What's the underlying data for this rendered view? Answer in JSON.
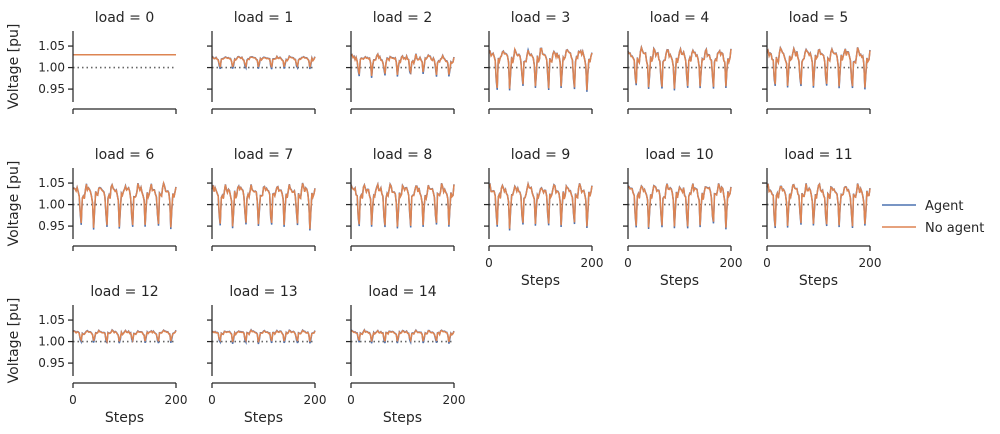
{
  "chart_data": {
    "type": "line",
    "facet_variable": "load",
    "facet_values": [
      0,
      1,
      2,
      3,
      4,
      5,
      6,
      7,
      8,
      9,
      10,
      11,
      12,
      13,
      14
    ],
    "facet_title_template": "load = {v}",
    "columns": 6,
    "xlabel": "Steps",
    "ylabel": "Voltage [pu]",
    "x_range": [
      0,
      200
    ],
    "ylim": [
      0.92,
      1.085
    ],
    "x_ticks": [
      0,
      200
    ],
    "y_ticks": [
      0.95,
      1.0,
      1.05
    ],
    "y_tick_labels": [
      "0.95",
      "1.00",
      "1.05"
    ],
    "reference_line": {
      "y": 1.0,
      "style": "dotted",
      "color": "#666666"
    },
    "legend": {
      "placement": "right-center",
      "entries": [
        "Agent",
        "No agent"
      ]
    },
    "series": [
      {
        "name": "Agent",
        "color": "#4c72b0"
      },
      {
        "name": "No agent",
        "color": "#dd8452"
      }
    ],
    "profiles": {
      "0": {
        "base": 1.03,
        "amp": 0.0,
        "period": 25,
        "jitter": 0
      },
      "1": {
        "base": 1.012,
        "amp": 0.018,
        "period": 25,
        "jitter": 0.004
      },
      "2": {
        "base": 1.005,
        "amp": 0.03,
        "period": 25,
        "jitter": 0.012
      },
      "3": {
        "base": 0.995,
        "amp": 0.065,
        "period": 25,
        "jitter": 0.012
      },
      "4": {
        "base": 0.995,
        "amp": 0.065,
        "period": 25,
        "jitter": 0.012
      },
      "5": {
        "base": 0.995,
        "amp": 0.065,
        "period": 25,
        "jitter": 0.012
      },
      "6": {
        "base": 0.995,
        "amp": 0.07,
        "period": 25,
        "jitter": 0.012
      },
      "7": {
        "base": 0.995,
        "amp": 0.07,
        "period": 25,
        "jitter": 0.012
      },
      "8": {
        "base": 0.995,
        "amp": 0.07,
        "period": 25,
        "jitter": 0.012
      },
      "9": {
        "base": 0.995,
        "amp": 0.07,
        "period": 25,
        "jitter": 0.012
      },
      "10": {
        "base": 0.995,
        "amp": 0.07,
        "period": 25,
        "jitter": 0.012
      },
      "11": {
        "base": 0.995,
        "amp": 0.07,
        "period": 25,
        "jitter": 0.012
      },
      "12": {
        "base": 1.012,
        "amp": 0.018,
        "period": 25,
        "jitter": 0.004
      },
      "13": {
        "base": 1.012,
        "amp": 0.018,
        "period": 25,
        "jitter": 0.004
      },
      "14": {
        "base": 1.012,
        "amp": 0.018,
        "period": 25,
        "jitter": 0.004
      }
    }
  }
}
